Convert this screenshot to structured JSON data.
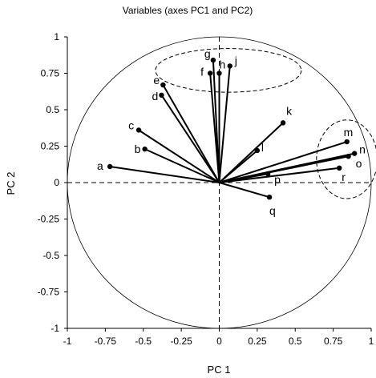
{
  "chart_data": {
    "type": "scatter",
    "title": "Variables (axes PC1 and PC2)",
    "xlabel": "PC 1",
    "ylabel": "PC 2",
    "xlim": [
      -1,
      1
    ],
    "ylim": [
      -1,
      1
    ],
    "xticks": [
      "-1",
      "-0.75",
      "-0.5",
      "-0.25",
      "0",
      "0.25",
      "0.5",
      "0.75",
      "1"
    ],
    "yticks": [
      "1",
      "0.75",
      "0.5",
      "0.25",
      "0",
      "-0.25",
      "-0.5",
      "-0.75",
      "-1"
    ],
    "grid": false,
    "correlation_circle": true,
    "reference_lines": "dashed at x=0 and y=0",
    "series": [
      {
        "points": [
          {
            "label": "a",
            "x": -0.72,
            "y": 0.11
          },
          {
            "label": "b",
            "x": -0.49,
            "y": 0.23
          },
          {
            "label": "c",
            "x": -0.53,
            "y": 0.36
          },
          {
            "label": "d",
            "x": -0.38,
            "y": 0.6
          },
          {
            "label": "e",
            "x": -0.37,
            "y": 0.67
          },
          {
            "label": "f",
            "x": -0.06,
            "y": 0.75
          },
          {
            "label": "g",
            "x": -0.04,
            "y": 0.84
          },
          {
            "label": "h",
            "x": 0.0,
            "y": 0.75
          },
          {
            "label": "j",
            "x": 0.07,
            "y": 0.8
          },
          {
            "label": "k",
            "x": 0.42,
            "y": 0.41
          },
          {
            "label": "l",
            "x": 0.25,
            "y": 0.22
          },
          {
            "label": "m",
            "x": 0.84,
            "y": 0.28
          },
          {
            "label": "n",
            "x": 0.89,
            "y": 0.2
          },
          {
            "label": "o",
            "x": 0.85,
            "y": 0.18
          },
          {
            "label": "p",
            "x": 0.32,
            "y": 0.06
          },
          {
            "label": "q",
            "x": 0.33,
            "y": -0.1
          },
          {
            "label": "r",
            "x": 0.79,
            "y": 0.1
          }
        ]
      }
    ],
    "highlight_ellipses": [
      {
        "cx": 0.06,
        "cy": 0.77,
        "rx": 0.48,
        "ry": 0.15
      },
      {
        "cx": 0.84,
        "cy": 0.16,
        "rx": 0.2,
        "ry": 0.27
      }
    ]
  }
}
